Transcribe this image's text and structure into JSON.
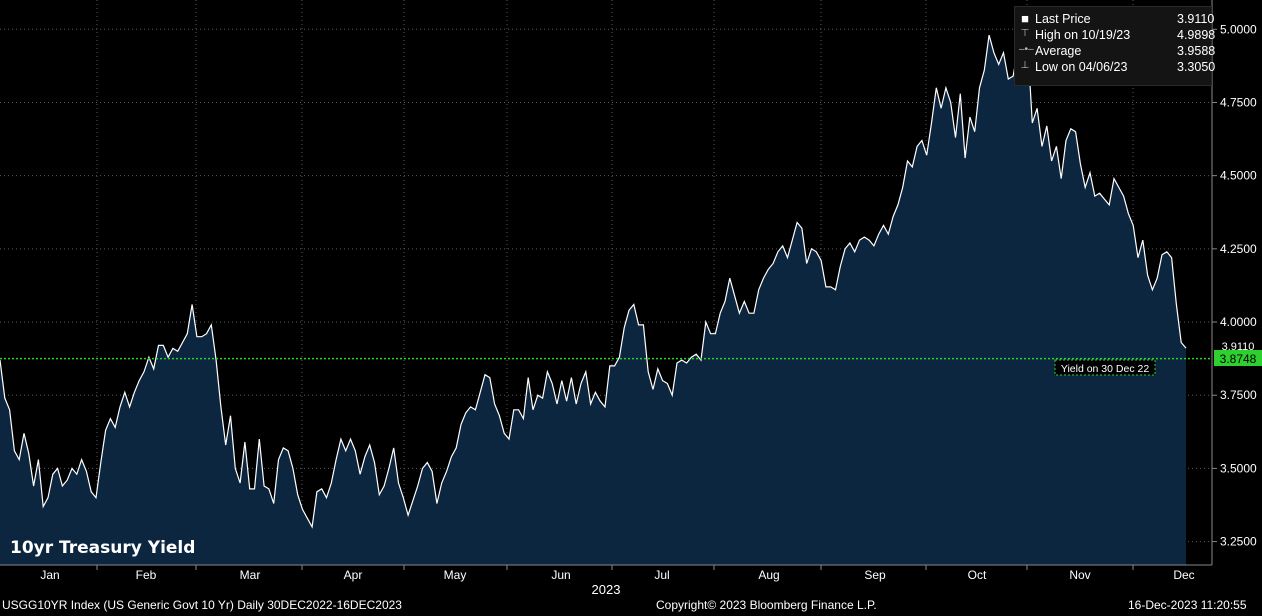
{
  "chart_data": {
    "type": "area",
    "title": "10yr Treasury Yield",
    "year_label": "2023",
    "months": [
      "Jan",
      "Feb",
      "Mar",
      "Apr",
      "May",
      "Jun",
      "Jul",
      "Aug",
      "Sep",
      "Oct",
      "Nov",
      "Dec"
    ],
    "y_ticks": [
      "3.2500",
      "3.5000",
      "3.7500",
      "4.0000",
      "4.2500",
      "4.5000",
      "4.7500",
      "5.0000"
    ],
    "ylim": [
      3.17,
      5.1
    ],
    "grid": true,
    "values": [
      3.87,
      3.74,
      3.7,
      3.56,
      3.53,
      3.62,
      3.55,
      3.44,
      3.53,
      3.37,
      3.4,
      3.48,
      3.5,
      3.44,
      3.46,
      3.5,
      3.48,
      3.53,
      3.49,
      3.42,
      3.4,
      3.52,
      3.63,
      3.67,
      3.64,
      3.71,
      3.76,
      3.71,
      3.76,
      3.8,
      3.83,
      3.88,
      3.84,
      3.92,
      3.92,
      3.88,
      3.91,
      3.9,
      3.93,
      3.96,
      4.06,
      3.95,
      3.95,
      3.96,
      3.99,
      3.87,
      3.71,
      3.58,
      3.68,
      3.5,
      3.45,
      3.59,
      3.43,
      3.43,
      3.6,
      3.44,
      3.43,
      3.38,
      3.53,
      3.57,
      3.56,
      3.5,
      3.41,
      3.36,
      3.33,
      3.3,
      3.42,
      3.43,
      3.4,
      3.45,
      3.53,
      3.6,
      3.56,
      3.6,
      3.56,
      3.48,
      3.54,
      3.58,
      3.52,
      3.41,
      3.44,
      3.5,
      3.57,
      3.45,
      3.4,
      3.34,
      3.39,
      3.44,
      3.5,
      3.52,
      3.49,
      3.38,
      3.45,
      3.49,
      3.54,
      3.57,
      3.65,
      3.69,
      3.71,
      3.7,
      3.76,
      3.82,
      3.81,
      3.72,
      3.68,
      3.62,
      3.6,
      3.7,
      3.7,
      3.67,
      3.81,
      3.7,
      3.75,
      3.74,
      3.83,
      3.79,
      3.72,
      3.8,
      3.73,
      3.81,
      3.72,
      3.79,
      3.83,
      3.72,
      3.76,
      3.73,
      3.71,
      3.85,
      3.85,
      3.88,
      3.98,
      4.04,
      4.06,
      3.99,
      3.99,
      3.83,
      3.77,
      3.84,
      3.8,
      3.79,
      3.75,
      3.86,
      3.87,
      3.86,
      3.88,
      3.89,
      3.87,
      4.0,
      3.96,
      3.96,
      4.03,
      4.07,
      4.15,
      4.09,
      4.03,
      4.07,
      4.03,
      4.03,
      4.11,
      4.15,
      4.18,
      4.2,
      4.24,
      4.26,
      4.22,
      4.28,
      4.34,
      4.32,
      4.2,
      4.25,
      4.24,
      4.21,
      4.12,
      4.12,
      4.11,
      4.19,
      4.25,
      4.27,
      4.24,
      4.28,
      4.29,
      4.28,
      4.26,
      4.3,
      4.33,
      4.3,
      4.36,
      4.4,
      4.46,
      4.55,
      4.53,
      4.6,
      4.62,
      4.57,
      4.68,
      4.8,
      4.73,
      4.8,
      4.75,
      4.63,
      4.78,
      4.56,
      4.7,
      4.65,
      4.8,
      4.86,
      4.98,
      4.92,
      4.88,
      4.92,
      4.83,
      4.84,
      4.93,
      4.84,
      4.96,
      4.68,
      4.73,
      4.6,
      4.67,
      4.55,
      4.6,
      4.49,
      4.62,
      4.66,
      4.65,
      4.54,
      4.46,
      4.51,
      4.43,
      4.44,
      4.42,
      4.4,
      4.49,
      4.46,
      4.43,
      4.37,
      4.33,
      4.22,
      4.28,
      4.16,
      4.11,
      4.15,
      4.23,
      4.24,
      4.22,
      4.06,
      3.93,
      3.911
    ],
    "last_price_label": "3.9110",
    "ref_line_value": 3.8748,
    "ref_line_label": "3.8748",
    "ref_line_caption": "Yield on 30 Dec 22",
    "colors": {
      "line": "#ffffff",
      "fill": "#0d2640",
      "ref": "#2dd02d",
      "grid": "#5a5a5a",
      "axis_text": "#ffffff"
    }
  },
  "legend": {
    "rows": [
      {
        "label": "Last Price",
        "value": "3.9110"
      },
      {
        "label": "High on 10/19/23",
        "value": "4.9898"
      },
      {
        "label": "Average",
        "value": "3.9588"
      },
      {
        "label": "Low on 04/06/23",
        "value": "3.3050"
      }
    ]
  },
  "footer": {
    "left": "USGG10YR Index (US Generic Govt 10 Yr)  Daily 30DEC2022-16DEC2023",
    "center": "Copyright© 2023 Bloomberg Finance L.P.",
    "right": "16-Dec-2023 11:20:55"
  }
}
